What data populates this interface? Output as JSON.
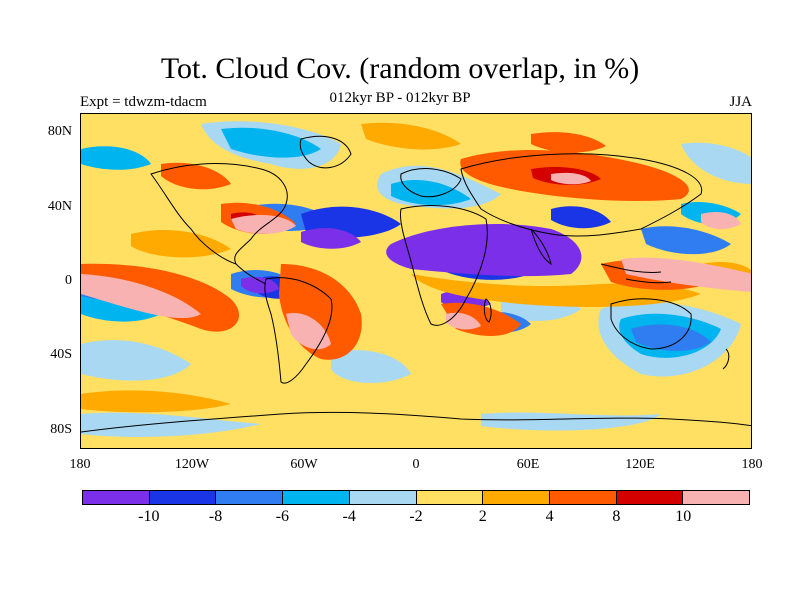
{
  "title": "Tot. Cloud Cov. (random overlap, in %)",
  "subtitle": "012kyr BP - 012kyr BP",
  "left_label": "Expt = tdwzm-tdacm",
  "right_label": "JJA",
  "lat_labels": [
    "80N",
    "40N",
    "0",
    "40S",
    "80S"
  ],
  "lon_labels": [
    "180",
    "120W",
    "60W",
    "0",
    "60E",
    "120E",
    "180"
  ],
  "colorbar": {
    "colors": [
      "#7b2fe8",
      "#1a35e6",
      "#2f7df0",
      "#00b4f0",
      "#a8d8f2",
      "#ffe063",
      "#ffaa00",
      "#ff5a00",
      "#d40000",
      "#f8b2b2"
    ],
    "labels": [
      "-10",
      "-8",
      "-6",
      "-4",
      "-2",
      "2",
      "4",
      "8",
      "10"
    ]
  }
}
